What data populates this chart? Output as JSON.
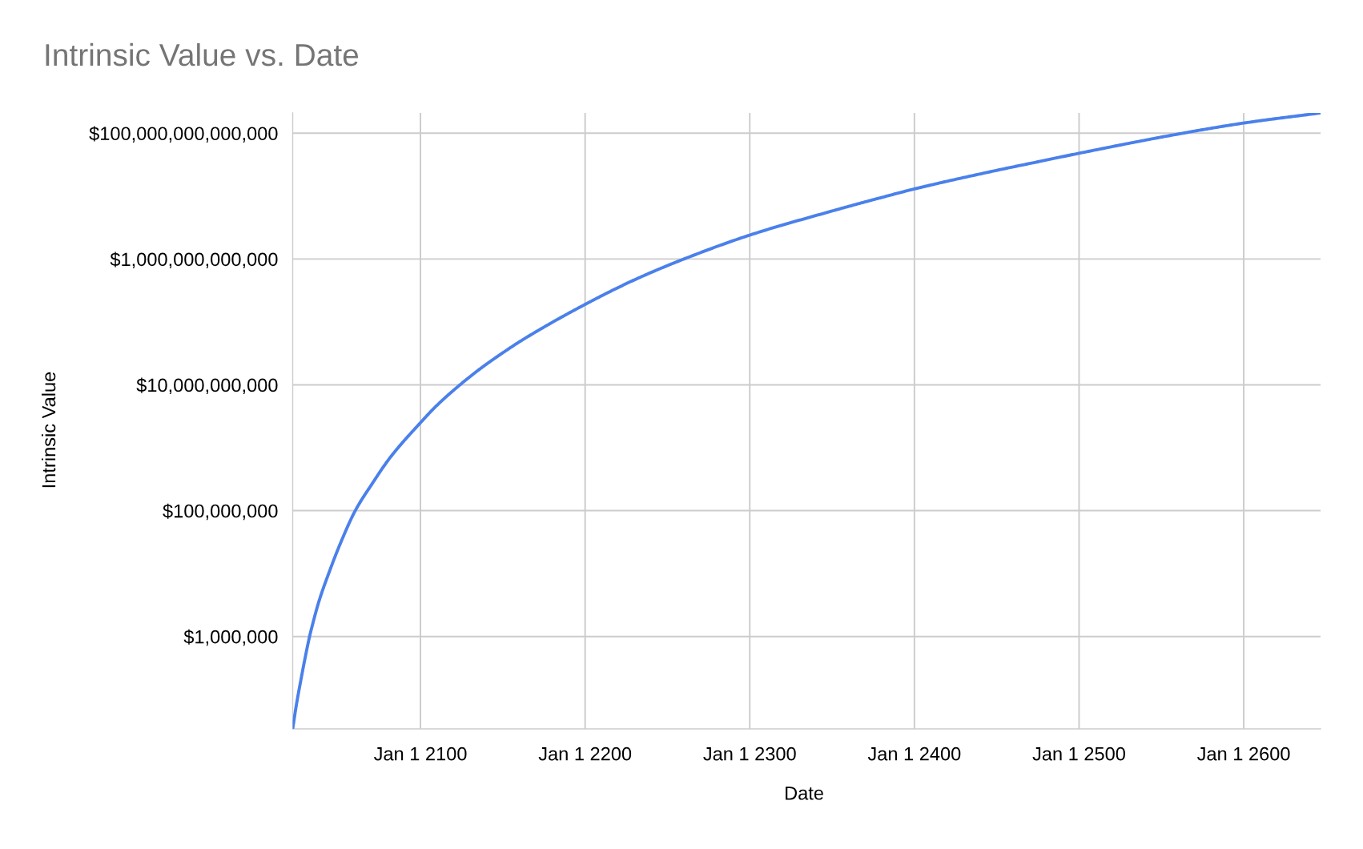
{
  "chart_data": {
    "type": "line",
    "title": "Intrinsic Value vs. Date",
    "xlabel": "Date",
    "ylabel": "Intrinsic Value",
    "log": "y",
    "grid": true,
    "line_style": "solid",
    "xlim": [
      "2022-06",
      "2646-09"
    ],
    "ylim": [
      34000,
      210000000000000
    ],
    "xticks": [
      {
        "value": "2100-01-01",
        "label": "Jan 1 2100"
      },
      {
        "value": "2200-01-01",
        "label": "Jan 1 2200"
      },
      {
        "value": "2300-01-01",
        "label": "Jan 1 2300"
      },
      {
        "value": "2400-01-01",
        "label": "Jan 1 2400"
      },
      {
        "value": "2500-01-01",
        "label": "Jan 1 2500"
      },
      {
        "value": "2600-01-01",
        "label": "Jan 1 2600"
      }
    ],
    "yticks": [
      {
        "value": 1000000,
        "label": "$1,000,000"
      },
      {
        "value": 100000000,
        "label": "$100,000,000"
      },
      {
        "value": 10000000000,
        "label": "$10,000,000,000"
      },
      {
        "value": 1000000000000,
        "label": "$1,000,000,000,000"
      },
      {
        "value": 100000000000000,
        "label": "$100,000,000,000,000"
      }
    ],
    "x": [
      "2022-06",
      "2024-08",
      "2027-05",
      "2030-04",
      "2032-09",
      "2034-05",
      "2038-05",
      "2044-11",
      "2051-05",
      "2060-06",
      "2070-10",
      "2081-04",
      "2100",
      "2109-08",
      "2124",
      "2136-04",
      "2154",
      "2161",
      "2200",
      "2231",
      "2260",
      "2300",
      "2350",
      "2380",
      "2400",
      "2451",
      "2477",
      "2500",
      "2563",
      "2600",
      "2646-09"
    ],
    "series": [
      {
        "color": "#4a80eb",
        "values": [
          34000,
          80000,
          200000,
          500000,
          1000000,
          1500000,
          3600000,
          11000000,
          30000000,
          100000000,
          270000000,
          680000000,
          2500000000,
          4600000000,
          10000000000,
          18000000000,
          38000000000,
          50000000000,
          190000000000,
          480000000000,
          1000000000000,
          2400000000000,
          5800000000000,
          9500000000000,
          13000000000000,
          26000000000000,
          36000000000000,
          48000000000000,
          100000000000000,
          145000000000000,
          210000000000000
        ]
      }
    ]
  }
}
